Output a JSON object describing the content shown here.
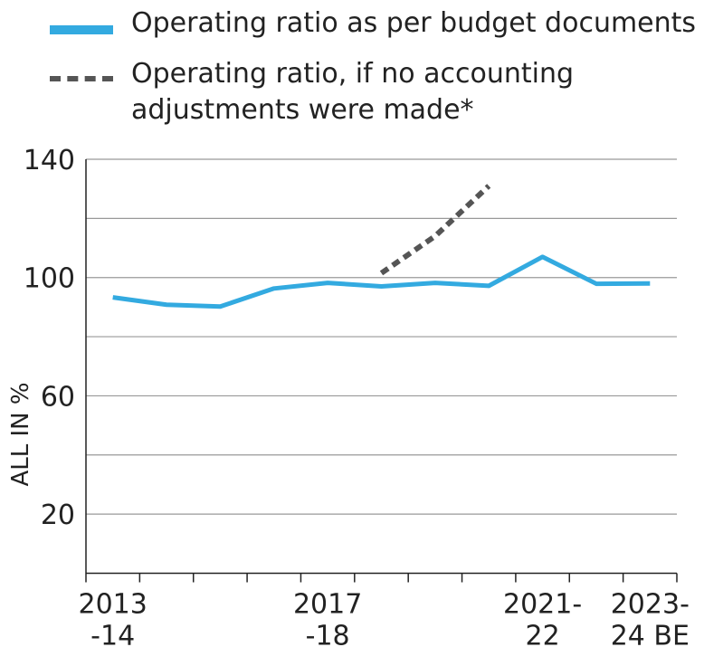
{
  "chart_data": {
    "type": "line",
    "categories": [
      [
        "2013",
        "-14"
      ],
      null,
      null,
      null,
      [
        "2017",
        "-18"
      ],
      null,
      null,
      null,
      [
        "2021-",
        "22"
      ],
      null,
      [
        "2023-",
        "24 BE"
      ]
    ],
    "series": [
      {
        "name": "Operating ratio as per budget documents",
        "color": "#33aae0",
        "style": "solid",
        "values": [
          93.3,
          90.8,
          90.2,
          96.3,
          98.2,
          97,
          98.2,
          97.2,
          107,
          97.9,
          98
        ]
      },
      {
        "name": "Operating ratio, if no accounting adjustments were made*",
        "color": "#555555",
        "style": "dashed",
        "values": [
          null,
          null,
          null,
          null,
          null,
          101.5,
          114,
          131,
          null,
          null,
          null
        ]
      }
    ],
    "ylabel": "ALL IN %",
    "ylim": [
      0,
      140
    ],
    "yticks": [
      20,
      60,
      100,
      140
    ],
    "minor_yticks": [
      40,
      80,
      120
    ],
    "grid": true
  }
}
